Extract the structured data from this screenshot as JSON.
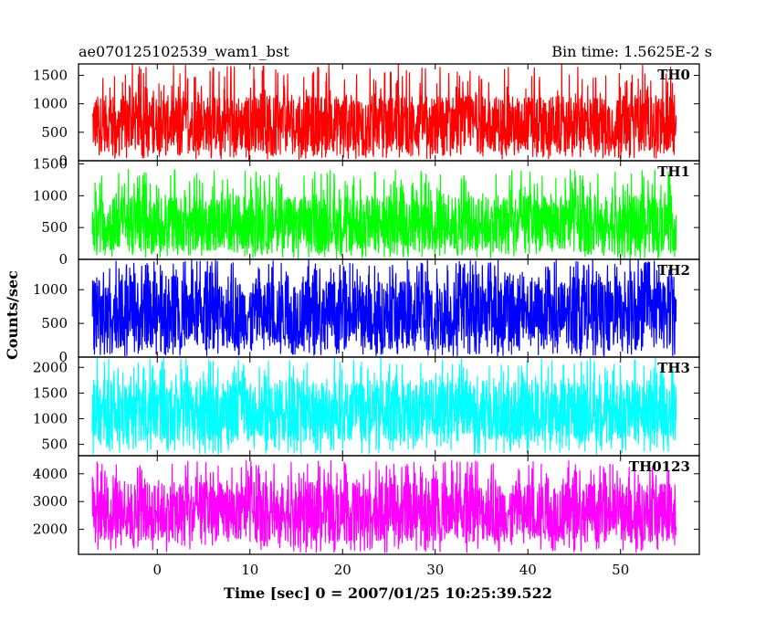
{
  "header": {
    "left": "ae070125102539_wam1_bst",
    "right": "Bin time: 1.5625E-2 s"
  },
  "chart_data": {
    "type": "line",
    "xlabel": "Time [sec] 0 = 2007/01/25 10:25:39.522",
    "ylabel": "Counts/sec",
    "xlim": [
      -8.5,
      58.5
    ],
    "x_ticks": [
      0,
      10,
      20,
      30,
      40,
      50
    ],
    "x_tick_labels": [
      "0",
      "10",
      "20",
      "30",
      "40",
      "50"
    ],
    "data_range_x": [
      -7.0,
      56.0
    ],
    "bin_time_s": 0.015625,
    "panels": [
      {
        "name": "TH0",
        "color": "#ff0000",
        "ylim": [
          0,
          1700
        ],
        "y_ticks": [
          0,
          500,
          1000,
          1500
        ],
        "y_tick_labels": [
          "0",
          "500",
          "1000",
          "1500"
        ],
        "base_min": 150,
        "base_max": 1150,
        "peak_min": 20,
        "peak_max": 1700
      },
      {
        "name": "TH1",
        "color": "#00ff00",
        "ylim": [
          0,
          1550
        ],
        "y_ticks": [
          0,
          500,
          1000,
          1500
        ],
        "y_tick_labels": [
          "0",
          "500",
          "1000",
          "1500"
        ],
        "base_min": 120,
        "base_max": 1000,
        "peak_min": 10,
        "peak_max": 1420
      },
      {
        "name": "TH2",
        "color": "#0000ff",
        "ylim": [
          0,
          1450
        ],
        "y_ticks": [
          0,
          500,
          1000
        ],
        "y_tick_labels": [
          "0",
          "500",
          "1000"
        ],
        "base_min": 120,
        "base_max": 1150,
        "peak_min": 15,
        "peak_max": 1450
      },
      {
        "name": "TH3",
        "color": "#00ffff",
        "ylim": [
          280,
          2200
        ],
        "y_ticks": [
          500,
          1000,
          1500,
          2000
        ],
        "y_tick_labels": [
          "500",
          "1000",
          "1500",
          "2000"
        ],
        "base_min": 550,
        "base_max": 1750,
        "peak_min": 300,
        "peak_max": 2200
      },
      {
        "name": "TH0123",
        "color": "#ff00ff",
        "ylim": [
          1100,
          4650
        ],
        "y_ticks": [
          2000,
          3000,
          4000
        ],
        "y_tick_labels": [
          "2000",
          "3000",
          "4000"
        ],
        "base_min": 1550,
        "base_max": 3700,
        "peak_min": 1150,
        "peak_max": 4500
      }
    ]
  }
}
